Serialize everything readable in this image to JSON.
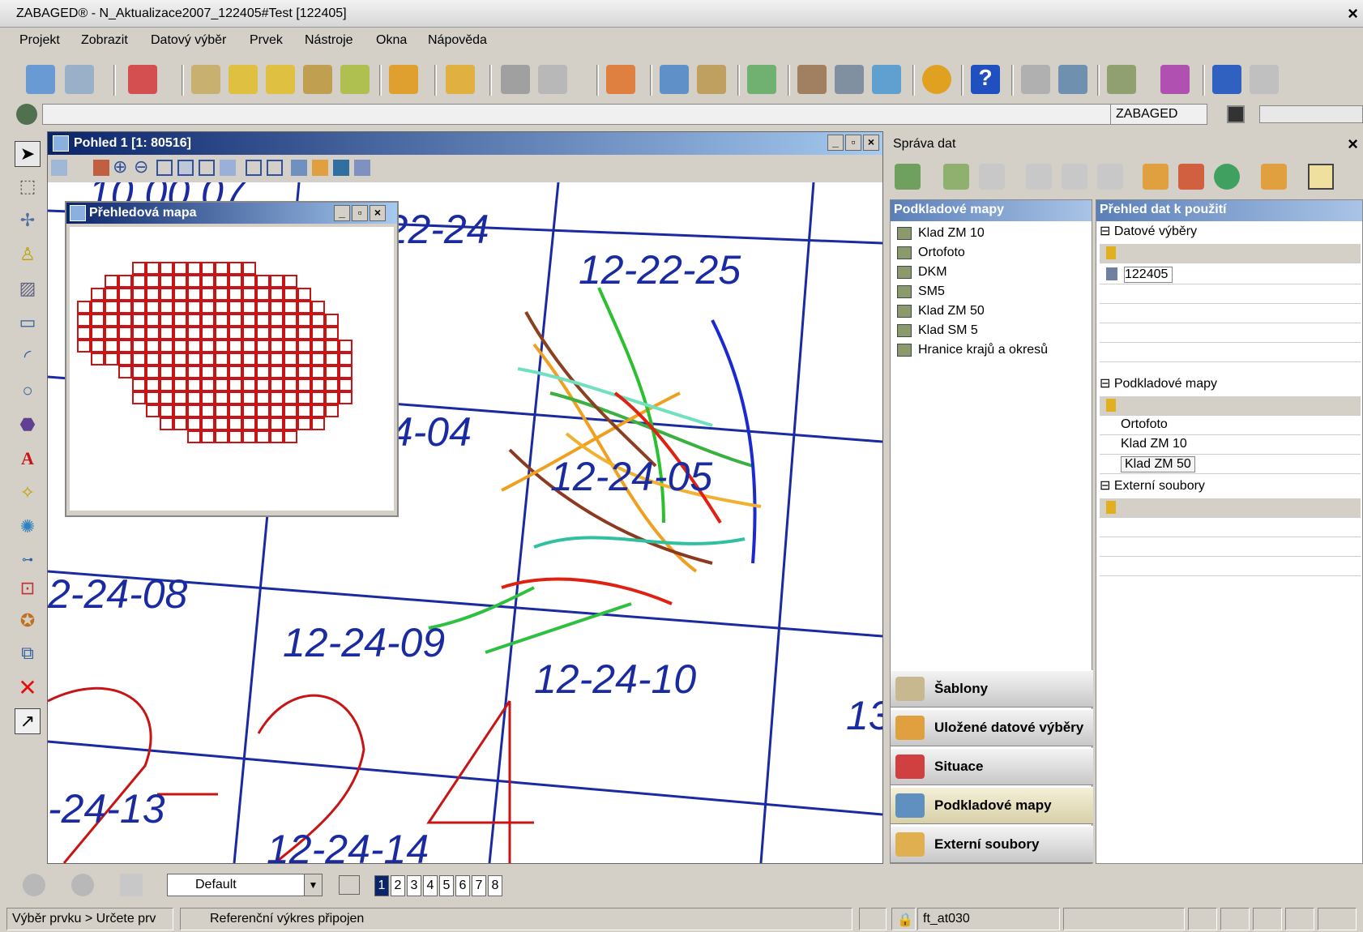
{
  "window": {
    "title": "ZABAGED® - N_Aktualizace2007_122405#Test [122405]",
    "close": "×"
  },
  "menu": [
    "Projekt",
    "Zobrazit",
    "Datový výběr",
    "Prvek",
    "Nástroje",
    "Okna",
    "Nápověda"
  ],
  "status_row": {
    "workspace": "ZABAGED"
  },
  "view": {
    "title": "Pohled 1 [1: 80516]",
    "buttons": [
      "_",
      "▫",
      "×"
    ]
  },
  "map": {
    "labels": [
      "-22-24",
      "12-22-25",
      "24-04",
      "12-24-05",
      "2-24-08",
      "12-24-09",
      "12-24-10",
      "13",
      "-24-13",
      "10 00 07",
      "12-24-14"
    ],
    "colors": {
      "grid": "#1a2aa0",
      "label": "#1a2aa0",
      "big_digit": "#c81414"
    }
  },
  "overview": {
    "title": "Přehledová mapa",
    "buttons": [
      "_",
      "▫",
      "×"
    ],
    "color": "#c81414"
  },
  "panel": {
    "title": "Správa dat",
    "close": "×",
    "left_header": "Podkladové mapy",
    "left_items": [
      "Klad ZM 10",
      "Ortofoto",
      "DKM",
      "SM5",
      "Klad ZM 50",
      "Klad SM 5",
      "Hranice krajů a okresů"
    ],
    "right_header": "Přehled dat k použití",
    "sections": [
      {
        "label": "Datové výběry",
        "rows": [
          "122405"
        ]
      },
      {
        "label": "Podkladové mapy",
        "rows": [
          "Ortofoto",
          "Klad ZM 10",
          "Klad ZM 50"
        ]
      },
      {
        "label": "Externí soubory",
        "rows": []
      }
    ],
    "nav_buttons": [
      "Šablony",
      "Uložené datové výběry",
      "Situace",
      "Podkladové mapy",
      "Externí soubory"
    ]
  },
  "bottom": {
    "view_group": "Default",
    "pages": [
      "1",
      "2",
      "3",
      "4",
      "5",
      "6",
      "7",
      "8"
    ]
  },
  "statusbar": {
    "prompt": "Výběr prvku > Určete prv",
    "message": "Referenční výkres připojen",
    "level": "ft_at030"
  }
}
